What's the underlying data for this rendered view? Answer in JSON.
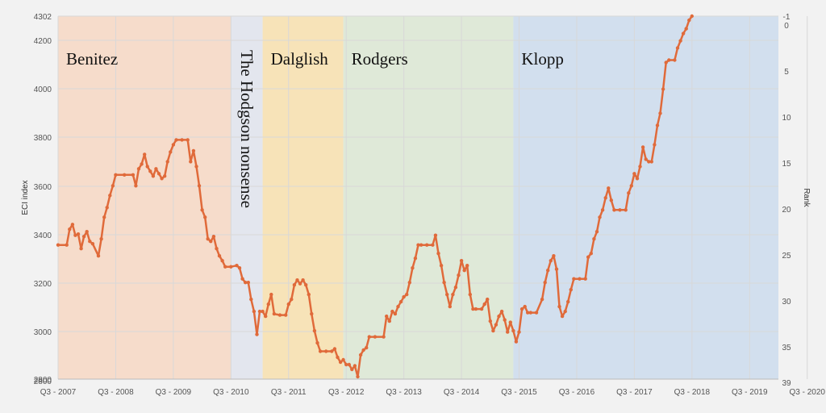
{
  "chart_data": {
    "type": "line",
    "title": "",
    "ylabel": "ECI index",
    "y2label": "Rank",
    "ylim": [
      2800,
      4302
    ],
    "y_ticks": [
      "2800",
      "2800",
      "3000",
      "3200",
      "3400",
      "3600",
      "3800",
      "4000",
      "4200",
      "4302"
    ],
    "y2_ticks": [
      "-1",
      "0",
      "5",
      "10",
      "15",
      "20",
      "25",
      "30",
      "35",
      "39"
    ],
    "x_ticks": [
      "Q3 - 2007",
      "Q3 - 2008",
      "Q3 - 2009",
      "Q3 - 2010",
      "Q3 - 2011",
      "Q3 - 2012",
      "Q3 - 2013",
      "Q3 - 2014",
      "Q3 - 2015",
      "Q3 - 2016",
      "Q3 - 2017",
      "Q3 - 2018",
      "Q3 - 2019",
      "Q3 - 2020"
    ],
    "grid": true,
    "colors": {
      "line": "#e06a3a",
      "grid": "#d8d8d8"
    },
    "eras": [
      {
        "label": "Benitez",
        "start": 2007.5,
        "end": 2010.5,
        "color": "#f6dccb"
      },
      {
        "label": "The Hodgson nonsense",
        "start": 2010.5,
        "end": 2011.05,
        "color": "#e3e6ee"
      },
      {
        "label": "Dalglish",
        "start": 2011.05,
        "end": 2012.45,
        "color": "#f7e3b8"
      },
      {
        "label": "Rodgers",
        "start": 2012.45,
        "end": 2015.4,
        "color": "#dfe9d8"
      },
      {
        "label": "Klopp",
        "start": 2015.4,
        "end": 2020.3,
        "color": "#d2dfee"
      }
    ],
    "series": [
      {
        "values": [
          [
            2007.5,
            3355
          ],
          [
            2007.65,
            3355
          ],
          [
            2007.7,
            3420
          ],
          [
            2007.75,
            3440
          ],
          [
            2007.8,
            3395
          ],
          [
            2007.85,
            3400
          ],
          [
            2007.9,
            3340
          ],
          [
            2007.95,
            3390
          ],
          [
            2008.0,
            3410
          ],
          [
            2008.05,
            3370
          ],
          [
            2008.1,
            3360
          ],
          [
            2008.2,
            3310
          ],
          [
            2008.25,
            3380
          ],
          [
            2008.3,
            3470
          ],
          [
            2008.35,
            3510
          ],
          [
            2008.4,
            3560
          ],
          [
            2008.45,
            3600
          ],
          [
            2008.5,
            3645
          ],
          [
            2008.65,
            3645
          ],
          [
            2008.8,
            3645
          ],
          [
            2008.85,
            3600
          ],
          [
            2008.9,
            3670
          ],
          [
            2008.95,
            3690
          ],
          [
            2009.0,
            3730
          ],
          [
            2009.05,
            3680
          ],
          [
            2009.1,
            3660
          ],
          [
            2009.15,
            3640
          ],
          [
            2009.2,
            3670
          ],
          [
            2009.25,
            3650
          ],
          [
            2009.3,
            3630
          ],
          [
            2009.35,
            3640
          ],
          [
            2009.4,
            3700
          ],
          [
            2009.45,
            3740
          ],
          [
            2009.5,
            3770
          ],
          [
            2009.55,
            3790
          ],
          [
            2009.65,
            3790
          ],
          [
            2009.75,
            3790
          ],
          [
            2009.8,
            3700
          ],
          [
            2009.85,
            3745
          ],
          [
            2009.9,
            3680
          ],
          [
            2009.95,
            3600
          ],
          [
            2010.0,
            3500
          ],
          [
            2010.05,
            3470
          ],
          [
            2010.1,
            3380
          ],
          [
            2010.15,
            3370
          ],
          [
            2010.2,
            3390
          ],
          [
            2010.25,
            3340
          ],
          [
            2010.3,
            3310
          ],
          [
            2010.35,
            3290
          ],
          [
            2010.4,
            3265
          ],
          [
            2010.5,
            3265
          ],
          [
            2010.6,
            3270
          ],
          [
            2010.65,
            3260
          ],
          [
            2010.7,
            3215
          ],
          [
            2010.75,
            3200
          ],
          [
            2010.8,
            3200
          ],
          [
            2010.85,
            3130
          ],
          [
            2010.9,
            3080
          ],
          [
            2010.95,
            2985
          ],
          [
            2011.0,
            3080
          ],
          [
            2011.05,
            3080
          ],
          [
            2011.1,
            3060
          ],
          [
            2011.15,
            3110
          ],
          [
            2011.2,
            3150
          ],
          [
            2011.25,
            3070
          ],
          [
            2011.35,
            3065
          ],
          [
            2011.45,
            3065
          ],
          [
            2011.5,
            3110
          ],
          [
            2011.55,
            3130
          ],
          [
            2011.6,
            3190
          ],
          [
            2011.65,
            3210
          ],
          [
            2011.7,
            3195
          ],
          [
            2011.75,
            3210
          ],
          [
            2011.8,
            3190
          ],
          [
            2011.85,
            3150
          ],
          [
            2011.9,
            3070
          ],
          [
            2011.95,
            3000
          ],
          [
            2012.0,
            2950
          ],
          [
            2012.05,
            2915
          ],
          [
            2012.15,
            2915
          ],
          [
            2012.25,
            2915
          ],
          [
            2012.3,
            2925
          ],
          [
            2012.35,
            2890
          ],
          [
            2012.4,
            2870
          ],
          [
            2012.45,
            2880
          ],
          [
            2012.5,
            2860
          ],
          [
            2012.55,
            2860
          ],
          [
            2012.6,
            2840
          ],
          [
            2012.65,
            2855
          ],
          [
            2012.7,
            2810
          ],
          [
            2012.75,
            2900
          ],
          [
            2012.8,
            2920
          ],
          [
            2012.85,
            2930
          ],
          [
            2012.9,
            2975
          ],
          [
            2013.0,
            2975
          ],
          [
            2013.15,
            2975
          ],
          [
            2013.2,
            3060
          ],
          [
            2013.25,
            3040
          ],
          [
            2013.3,
            3080
          ],
          [
            2013.35,
            3070
          ],
          [
            2013.4,
            3100
          ],
          [
            2013.45,
            3120
          ],
          [
            2013.5,
            3140
          ],
          [
            2013.55,
            3150
          ],
          [
            2013.6,
            3200
          ],
          [
            2013.65,
            3260
          ],
          [
            2013.7,
            3300
          ],
          [
            2013.75,
            3355
          ],
          [
            2013.8,
            3355
          ],
          [
            2013.9,
            3355
          ],
          [
            2014.0,
            3355
          ],
          [
            2014.05,
            3395
          ],
          [
            2014.1,
            3320
          ],
          [
            2014.15,
            3270
          ],
          [
            2014.2,
            3200
          ],
          [
            2014.25,
            3150
          ],
          [
            2014.3,
            3100
          ],
          [
            2014.35,
            3150
          ],
          [
            2014.4,
            3180
          ],
          [
            2014.45,
            3230
          ],
          [
            2014.5,
            3290
          ],
          [
            2014.55,
            3250
          ],
          [
            2014.6,
            3270
          ],
          [
            2014.65,
            3150
          ],
          [
            2014.7,
            3090
          ],
          [
            2014.75,
            3090
          ],
          [
            2014.85,
            3090
          ],
          [
            2014.9,
            3110
          ],
          [
            2014.95,
            3130
          ],
          [
            2015.0,
            3040
          ],
          [
            2015.05,
            3000
          ],
          [
            2015.1,
            3025
          ],
          [
            2015.15,
            3060
          ],
          [
            2015.2,
            3080
          ],
          [
            2015.25,
            3045
          ],
          [
            2015.3,
            2995
          ],
          [
            2015.35,
            3035
          ],
          [
            2015.4,
            3000
          ],
          [
            2015.45,
            2955
          ],
          [
            2015.5,
            2995
          ],
          [
            2015.55,
            3090
          ],
          [
            2015.6,
            3100
          ],
          [
            2015.65,
            3075
          ],
          [
            2015.7,
            3075
          ],
          [
            2015.8,
            3075
          ],
          [
            2015.9,
            3130
          ],
          [
            2015.95,
            3200
          ],
          [
            2016.0,
            3250
          ],
          [
            2016.05,
            3290
          ],
          [
            2016.1,
            3310
          ],
          [
            2016.15,
            3255
          ],
          [
            2016.2,
            3100
          ],
          [
            2016.25,
            3060
          ],
          [
            2016.3,
            3080
          ],
          [
            2016.35,
            3120
          ],
          [
            2016.4,
            3170
          ],
          [
            2016.45,
            3215
          ],
          [
            2016.55,
            3215
          ],
          [
            2016.65,
            3215
          ],
          [
            2016.7,
            3305
          ],
          [
            2016.75,
            3320
          ],
          [
            2016.8,
            3380
          ],
          [
            2016.85,
            3410
          ],
          [
            2016.9,
            3470
          ],
          [
            2016.95,
            3500
          ],
          [
            2017.0,
            3550
          ],
          [
            2017.05,
            3590
          ],
          [
            2017.1,
            3540
          ],
          [
            2017.15,
            3500
          ],
          [
            2017.25,
            3500
          ],
          [
            2017.35,
            3500
          ],
          [
            2017.4,
            3570
          ],
          [
            2017.45,
            3600
          ],
          [
            2017.5,
            3650
          ],
          [
            2017.55,
            3630
          ],
          [
            2017.6,
            3680
          ],
          [
            2017.65,
            3760
          ],
          [
            2017.7,
            3710
          ],
          [
            2017.75,
            3700
          ],
          [
            2017.8,
            3700
          ],
          [
            2017.85,
            3770
          ],
          [
            2017.9,
            3850
          ],
          [
            2017.95,
            3900
          ],
          [
            2018.0,
            4000
          ],
          [
            2018.05,
            4110
          ],
          [
            2018.1,
            4120
          ],
          [
            2018.2,
            4120
          ],
          [
            2018.25,
            4170
          ],
          [
            2018.3,
            4200
          ],
          [
            2018.35,
            4230
          ],
          [
            2018.4,
            4250
          ],
          [
            2018.45,
            4285
          ],
          [
            2018.5,
            4302
          ]
        ]
      }
    ]
  }
}
